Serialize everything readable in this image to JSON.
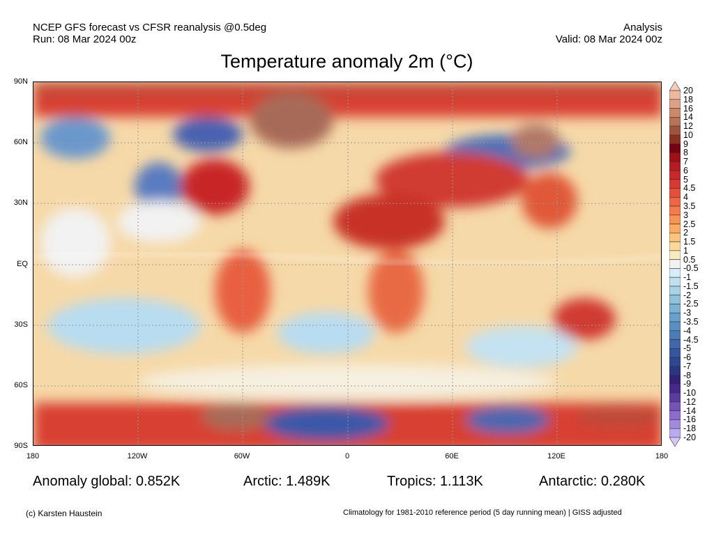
{
  "header": {
    "left_line1": "NCEP GFS forecast vs CFSR reanalysis @0.5deg",
    "left_line2": "Run: 08 Mar 2024 00z",
    "right_line1": "Analysis",
    "right_line2": "Valid: 08 Mar 2024 00z",
    "title": "Temperature anomaly 2m (°C)"
  },
  "axes": {
    "lat_labels": [
      "90N",
      "60N",
      "30N",
      "EQ",
      "30S",
      "60S",
      "90S"
    ],
    "lon_labels": [
      "180",
      "120W",
      "60W",
      "0",
      "60E",
      "120E",
      "180"
    ]
  },
  "colorbar": {
    "labels": [
      "20",
      "18",
      "16",
      "14",
      "12",
      "10",
      "9",
      "8",
      "7",
      "6",
      "5",
      "4.5",
      "4",
      "3.5",
      "3",
      "2.5",
      "2",
      "1.5",
      "1",
      "0.5",
      "-0.5",
      "-1",
      "-1.5",
      "-2",
      "-2.5",
      "-3",
      "-3.5",
      "-4",
      "-4.5",
      "-5",
      "-6",
      "-7",
      "-8",
      "-9",
      "-10",
      "-12",
      "-14",
      "-16",
      "-18",
      "-20"
    ],
    "colors": [
      "#f5cdb8",
      "#ebb8a0",
      "#dca084",
      "#c98a6c",
      "#b87258",
      "#a05440",
      "#8a3020",
      "#780010",
      "#a01018",
      "#b81c22",
      "#c8282a",
      "#d83a32",
      "#e64e3a",
      "#ef6642",
      "#f57c4a",
      "#f89452",
      "#fbac62",
      "#fdc47a",
      "#fdd896",
      "#f7ecc0",
      "#f2f2f2",
      "#d6eefa",
      "#bfe0f0",
      "#a8d2e6",
      "#90c2dc",
      "#7cb2d4",
      "#68a0cc",
      "#5890c2",
      "#4c7cb6",
      "#4068aa",
      "#34569e",
      "#2c4892",
      "#2a3684",
      "#32207a",
      "#48288c",
      "#5c3aa0",
      "#7452b8",
      "#8c6ccc",
      "#a48ade",
      "#bcaaee",
      "#d2c8f8"
    ]
  },
  "stats": {
    "global": "Anomaly global: 0.852K",
    "arctic": "Arctic: 1.489K",
    "tropics": "Tropics: 1.113K",
    "antarctic": "Antarctic: 0.280K"
  },
  "footer": {
    "credit": "(c) Karsten Haustein",
    "note": "Climatology for 1981-2010 reference period (5 day running mean) | GISS adjusted"
  }
}
